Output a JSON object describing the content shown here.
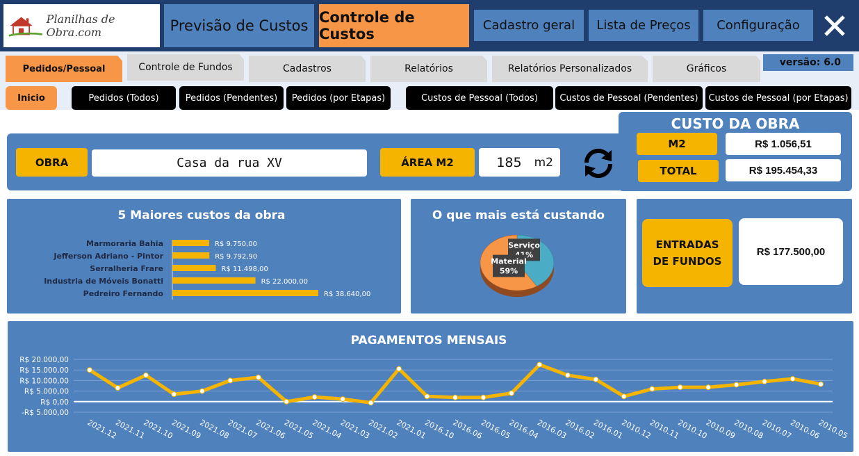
{
  "header": {
    "logo_text": "Planilhas de Obra.com",
    "tabs": [
      {
        "label": "Previsão de Custos",
        "active": false
      },
      {
        "label": "Controle de Custos",
        "active": true
      },
      {
        "label": "Cadastro geral",
        "active": false
      },
      {
        "label": "Lista de Preços",
        "active": false
      },
      {
        "label": "Configuração",
        "active": false
      }
    ]
  },
  "subtabs": [
    {
      "label": "Pedidos/Pessoal",
      "active": true
    },
    {
      "label": "Controle de Fundos",
      "active": false
    },
    {
      "label": "Cadastros",
      "active": false
    },
    {
      "label": "Relatórios",
      "active": false
    },
    {
      "label": "Relatórios Personalizados",
      "active": false
    },
    {
      "label": "Gráficos",
      "active": false
    }
  ],
  "version": "versão: 6.0",
  "nav": {
    "inicio": "Inicio",
    "buttons": [
      "Pedidos (Todos)",
      "Pedidos (Pendentes)",
      "Pedidos (por Etapas)",
      "Custos de Pessoal (Todos)",
      "Custos de Pessoal (Pendentes)",
      "Custos de Pessoal (por Etapas)"
    ]
  },
  "obra": {
    "label": "OBRA",
    "value": "Casa da rua XV",
    "area_label": "ÁREA M2",
    "area_value": "185",
    "area_unit": "m2"
  },
  "custo": {
    "title": "CUSTO DA OBRA",
    "m2_label": "M2",
    "m2_value": "R$ 1.056,51",
    "total_label": "TOTAL",
    "total_value": "R$ 195.454,33"
  },
  "fundos": {
    "label_line1": "ENTRADAS",
    "label_line2": "DE FUNDOS",
    "value": "R$ 177.500,00"
  },
  "colors": {
    "panel": "#4f81bd",
    "accent": "#f79646",
    "yellow": "#f4b400",
    "header": "#1f3e6e"
  },
  "chart_data": [
    {
      "type": "bar",
      "title": "5 Maiores custos da obra",
      "orientation": "horizontal",
      "categories": [
        "Marmoraria Bahia",
        "Jefferson Adriano - Pintor",
        "Serralheria Frare",
        "Industria de Móveis Bonatti",
        "Pedreiro Fernando"
      ],
      "values": [
        9750,
        9792.9,
        11498,
        22000,
        38640
      ],
      "data_labels": [
        "R$ 9.750,00",
        "R$ 9.792,90",
        "R$ 11.498,00",
        "R$ 22.000,00",
        "R$ 38.640,00"
      ]
    },
    {
      "type": "pie",
      "title": "O que mais está custando",
      "slices": [
        {
          "label": "Serviço",
          "value": 41,
          "value_label": "41%",
          "color": "#4bacc6"
        },
        {
          "label": "Material",
          "value": 59,
          "value_label": "59%",
          "color": "#f79646"
        }
      ]
    },
    {
      "type": "line",
      "title": "PAGAMENTOS MENSAIS",
      "ylim": [
        -5000,
        20000
      ],
      "yticks": [
        "R$ 20.000,00",
        "R$ 15.000,00",
        "R$ 10.000,00",
        "R$ 5.000,00",
        "R$ 0,00",
        "-R$ 5.000,00"
      ],
      "ytick_values": [
        20000,
        15000,
        10000,
        5000,
        0,
        -5000
      ],
      "categories": [
        "2021.12",
        "2021.11",
        "2021.10",
        "2021.09",
        "2021.08",
        "2021.07",
        "2021.06",
        "2021.05",
        "2021.04",
        "2021.03",
        "2021.02",
        "2021.01",
        "2016.10",
        "2016.06",
        "2016.05",
        "2016.04",
        "2016.03",
        "2016.02",
        "2016.01",
        "2010.12",
        "2010.11",
        "2010.10",
        "2010.09",
        "2010.08",
        "2010.07",
        "2010.06",
        "2010.05"
      ],
      "values": [
        15000,
        6500,
        12500,
        3500,
        5000,
        10000,
        11500,
        0,
        2200,
        1200,
        -500,
        15500,
        2500,
        2000,
        2000,
        4000,
        17500,
        12500,
        10500,
        2500,
        6000,
        6800,
        6800,
        8000,
        9500,
        10800,
        8300
      ]
    }
  ]
}
